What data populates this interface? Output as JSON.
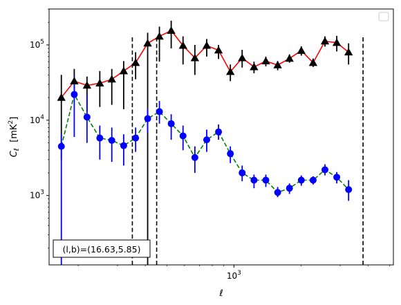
{
  "chart_data": {
    "type": "line",
    "xscale": "log",
    "yscale": "log",
    "xlim": [
      148,
      5200
    ],
    "ylim": [
      120,
      300000
    ],
    "xlabel": "ℓ",
    "ylabel": "C_ℓ  [mK²]",
    "x_tick_labels": [
      {
        "value": 1000,
        "label": "10^3"
      }
    ],
    "y_tick_labels": [
      {
        "value": 1000,
        "label": "10^3"
      },
      {
        "value": 10000,
        "label": "10^4"
      },
      {
        "value": 100000,
        "label": "10^5"
      }
    ],
    "legend": {
      "location": "top-right",
      "entries": []
    },
    "vertical_lines": [
      {
        "x": 350,
        "ymin": 120,
        "ymax": 135000
      },
      {
        "x": 450,
        "ymin": 120,
        "ymax": 135000
      },
      {
        "x": 3800,
        "ymin": 120,
        "ymax": 135000
      }
    ],
    "annotation": "(l,b)=(16.63,5.85)",
    "series": [
      {
        "marker": "triangle",
        "marker_color": "#000000",
        "line_color": "#ff0000",
        "line_style": "solid",
        "errorbar_color": "#000000",
        "points": [
          {
            "x": 168,
            "y": 20000,
            "lo": 3000,
            "hi": 40000
          },
          {
            "x": 192,
            "y": 33000,
            "lo": 20000,
            "hi": 48000
          },
          {
            "x": 219,
            "y": 29000,
            "lo": 13000,
            "hi": 38000
          },
          {
            "x": 250,
            "y": 31000,
            "lo": 15000,
            "hi": 45000
          },
          {
            "x": 283,
            "y": 35000,
            "lo": 16000,
            "hi": 48000
          },
          {
            "x": 320,
            "y": 45000,
            "lo": 14000,
            "hi": 61000
          },
          {
            "x": 362,
            "y": 58000,
            "lo": 35000,
            "hi": 80000
          },
          {
            "x": 410,
            "y": 105000,
            "lo": 120,
            "hi": 145000
          },
          {
            "x": 463,
            "y": 130000,
            "lo": 60000,
            "hi": 175000
          },
          {
            "x": 523,
            "y": 155000,
            "lo": 90000,
            "hi": 210000
          },
          {
            "x": 591,
            "y": 98000,
            "lo": 55000,
            "hi": 130000
          },
          {
            "x": 668,
            "y": 67000,
            "lo": 40000,
            "hi": 100000
          },
          {
            "x": 755,
            "y": 98000,
            "lo": 70000,
            "hi": 120000
          },
          {
            "x": 853,
            "y": 85000,
            "lo": 65000,
            "hi": 100000
          },
          {
            "x": 964,
            "y": 44000,
            "lo": 33000,
            "hi": 55000
          },
          {
            "x": 1089,
            "y": 67000,
            "lo": 50000,
            "hi": 86000
          },
          {
            "x": 1231,
            "y": 51000,
            "lo": 42000,
            "hi": 60000
          },
          {
            "x": 1391,
            "y": 61000,
            "lo": 52000,
            "hi": 70000
          },
          {
            "x": 1572,
            "y": 54000,
            "lo": 46000,
            "hi": 61000
          },
          {
            "x": 1776,
            "y": 66000,
            "lo": 58000,
            "hi": 75000
          },
          {
            "x": 2007,
            "y": 84000,
            "lo": 72000,
            "hi": 96000
          },
          {
            "x": 2268,
            "y": 58000,
            "lo": 51000,
            "hi": 66000
          },
          {
            "x": 2563,
            "y": 112000,
            "lo": 95000,
            "hi": 130000
          },
          {
            "x": 2896,
            "y": 107000,
            "lo": 82000,
            "hi": 132000
          },
          {
            "x": 3272,
            "y": 80000,
            "lo": 55000,
            "hi": 105000
          }
        ]
      },
      {
        "marker": "circle",
        "marker_color": "#0000ff",
        "line_color": "#008000",
        "line_style": "dashed",
        "errorbar_color": "#0000ff",
        "points": [
          {
            "x": 168,
            "y": 4500,
            "lo": 120,
            "hi": 6500
          },
          {
            "x": 192,
            "y": 22000,
            "lo": 6000,
            "hi": 38000
          },
          {
            "x": 219,
            "y": 11000,
            "lo": 5000,
            "hi": 22000
          },
          {
            "x": 250,
            "y": 5800,
            "lo": 3000,
            "hi": 8500
          },
          {
            "x": 283,
            "y": 5400,
            "lo": 2800,
            "hi": 8000
          },
          {
            "x": 320,
            "y": 4600,
            "lo": 2500,
            "hi": 6500
          },
          {
            "x": 362,
            "y": 5800,
            "lo": 3800,
            "hi": 8000
          },
          {
            "x": 410,
            "y": 10500,
            "lo": 7000,
            "hi": 14000
          },
          {
            "x": 463,
            "y": 13000,
            "lo": 9000,
            "hi": 18000
          },
          {
            "x": 523,
            "y": 9000,
            "lo": 5500,
            "hi": 12000
          },
          {
            "x": 591,
            "y": 6200,
            "lo": 4000,
            "hi": 8500
          },
          {
            "x": 668,
            "y": 3200,
            "lo": 2000,
            "hi": 4500
          },
          {
            "x": 755,
            "y": 5500,
            "lo": 3800,
            "hi": 7500
          },
          {
            "x": 853,
            "y": 7000,
            "lo": 5500,
            "hi": 8800
          },
          {
            "x": 964,
            "y": 3600,
            "lo": 2700,
            "hi": 4500
          },
          {
            "x": 1089,
            "y": 2000,
            "lo": 1550,
            "hi": 2500
          },
          {
            "x": 1231,
            "y": 1600,
            "lo": 1250,
            "hi": 1900
          },
          {
            "x": 1391,
            "y": 1600,
            "lo": 1300,
            "hi": 1900
          },
          {
            "x": 1572,
            "y": 1100,
            "lo": 950,
            "hi": 1300
          },
          {
            "x": 1776,
            "y": 1250,
            "lo": 1050,
            "hi": 1450
          },
          {
            "x": 2007,
            "y": 1600,
            "lo": 1350,
            "hi": 1850
          },
          {
            "x": 2268,
            "y": 1600,
            "lo": 1400,
            "hi": 1800
          },
          {
            "x": 2563,
            "y": 2200,
            "lo": 1850,
            "hi": 2600
          },
          {
            "x": 2896,
            "y": 1750,
            "lo": 1450,
            "hi": 2050
          },
          {
            "x": 3272,
            "y": 1200,
            "lo": 850,
            "hi": 1600
          }
        ]
      }
    ]
  }
}
